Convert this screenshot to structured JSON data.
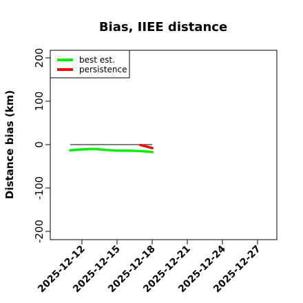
{
  "chart_data": {
    "type": "line",
    "title": "Bias, IIEE distance",
    "xlabel": "",
    "ylabel": "Distance bias (km)",
    "x_axis_type": "date",
    "xlim": [
      "2025-12-10",
      "2025-12-29"
    ],
    "ylim": [
      -220,
      220
    ],
    "x_ticks": [
      "2025-12-12",
      "2025-12-15",
      "2025-12-18",
      "2025-12-21",
      "2025-12-24",
      "2025-12-27"
    ],
    "y_ticks": [
      -200,
      -100,
      0,
      100,
      200
    ],
    "grid": false,
    "legend_position": "top-left",
    "reference_line": {
      "y": 0,
      "x_start": "2025-12-11",
      "x_end": "2025-12-18",
      "color": "#333333"
    },
    "series": [
      {
        "name": "best est.",
        "color": "#00ee00",
        "x": [
          "2025-12-11",
          "2025-12-12",
          "2025-12-13",
          "2025-12-14",
          "2025-12-15",
          "2025-12-16",
          "2025-12-17",
          "2025-12-18"
        ],
        "y": [
          -13,
          -11,
          -10,
          -12,
          -14,
          -14,
          -15,
          -17
        ]
      },
      {
        "name": "persistence",
        "color": "#ff0000",
        "x": [
          "2025-12-17",
          "2025-12-18"
        ],
        "y": [
          -1,
          -8
        ]
      }
    ]
  }
}
